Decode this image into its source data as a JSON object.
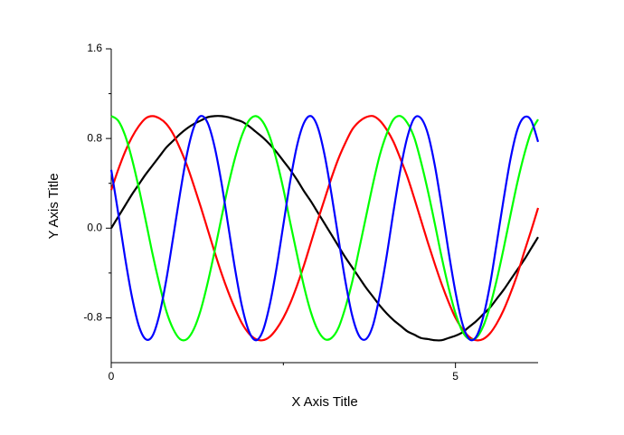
{
  "chart_data": {
    "type": "line",
    "x_label": "X Axis Title",
    "y_label": "Y Axis Title",
    "xlim": [
      0,
      6.2
    ],
    "ylim": [
      -1.2,
      1.6
    ],
    "xticks": [
      0,
      5
    ],
    "xminor_ticks": [
      2.5
    ],
    "yticks": [
      1.6,
      0.8,
      {
        "value": 0,
        "label": "0.0"
      },
      -0.8
    ],
    "yminor_ticks": [
      1.2,
      0.4,
      -0.4
    ],
    "x": [
      0,
      0.1,
      0.2,
      0.3,
      0.4,
      0.5,
      0.6,
      0.7,
      0.8,
      0.9,
      1.0,
      1.1,
      1.2,
      1.3,
      1.4,
      1.5,
      1.6,
      1.7,
      1.8,
      1.9,
      2.0,
      2.1,
      2.2,
      2.3,
      2.4,
      2.5,
      2.6,
      2.7,
      2.8,
      2.9,
      3.0,
      3.1,
      3.2,
      3.3,
      3.4,
      3.5,
      3.6,
      3.7,
      3.8,
      3.9,
      4.0,
      4.1,
      4.2,
      4.3,
      4.4,
      4.5,
      4.6,
      4.7,
      4.8,
      4.9,
      5.0,
      5.1,
      5.2,
      5.3,
      5.4,
      5.5,
      5.6,
      5.7,
      5.8,
      5.9,
      6.0,
      6.1,
      6.2
    ],
    "series": [
      {
        "color": "#000000",
        "values": [
          0,
          0.1,
          0.2,
          0.3,
          0.39,
          0.48,
          0.56,
          0.64,
          0.72,
          0.78,
          0.84,
          0.89,
          0.93,
          0.96,
          0.99,
          1.0,
          1.0,
          0.99,
          0.97,
          0.95,
          0.91,
          0.86,
          0.81,
          0.75,
          0.68,
          0.6,
          0.52,
          0.43,
          0.33,
          0.24,
          0.14,
          0.04,
          -0.06,
          -0.16,
          -0.26,
          -0.35,
          -0.44,
          -0.53,
          -0.61,
          -0.69,
          -0.76,
          -0.82,
          -0.87,
          -0.92,
          -0.95,
          -0.98,
          -0.99,
          -1.0,
          -1.0,
          -0.98,
          -0.96,
          -0.93,
          -0.88,
          -0.83,
          -0.77,
          -0.71,
          -0.63,
          -0.55,
          -0.46,
          -0.37,
          -0.28,
          -0.18,
          -0.08
        ]
      },
      {
        "color": "#ff0000",
        "values": [
          0.34,
          0.52,
          0.68,
          0.81,
          0.91,
          0.98,
          1.0,
          0.98,
          0.93,
          0.84,
          0.71,
          0.56,
          0.38,
          0.19,
          -0.01,
          -0.21,
          -0.4,
          -0.57,
          -0.72,
          -0.85,
          -0.94,
          -0.99,
          -1.0,
          -0.97,
          -0.9,
          -0.8,
          -0.67,
          -0.51,
          -0.33,
          -0.13,
          0.07,
          0.26,
          0.45,
          0.62,
          0.76,
          0.88,
          0.95,
          0.99,
          1.0,
          0.96,
          0.88,
          0.77,
          0.62,
          0.46,
          0.27,
          0.07,
          -0.13,
          -0.32,
          -0.5,
          -0.66,
          -0.8,
          -0.9,
          -0.97,
          -1.0,
          -0.99,
          -0.94,
          -0.85,
          -0.73,
          -0.58,
          -0.41,
          -0.21,
          -0.02,
          0.18
        ]
      },
      {
        "color": "#00ff00",
        "values": [
          1.0,
          0.96,
          0.83,
          0.62,
          0.36,
          0.07,
          -0.23,
          -0.5,
          -0.74,
          -0.9,
          -0.99,
          -0.99,
          -0.9,
          -0.73,
          -0.49,
          -0.21,
          0.09,
          0.38,
          0.63,
          0.83,
          0.96,
          1.0,
          0.95,
          0.82,
          0.61,
          0.35,
          0.05,
          -0.24,
          -0.52,
          -0.75,
          -0.91,
          -0.99,
          -0.98,
          -0.89,
          -0.71,
          -0.48,
          -0.19,
          0.1,
          0.39,
          0.65,
          0.84,
          0.97,
          1.0,
          0.94,
          0.81,
          0.59,
          0.33,
          0.04,
          -0.26,
          -0.53,
          -0.76,
          -0.92,
          -0.99,
          -0.98,
          -0.88,
          -0.7,
          -0.46,
          -0.18,
          0.12,
          0.41,
          0.66,
          0.86,
          0.97
        ]
      },
      {
        "color": "#0000ff",
        "values": [
          0.52,
          0.14,
          -0.26,
          -0.61,
          -0.87,
          -0.99,
          -0.96,
          -0.77,
          -0.46,
          -0.08,
          0.31,
          0.66,
          0.9,
          1.0,
          0.94,
          0.73,
          0.41,
          0.02,
          -0.37,
          -0.7,
          -0.92,
          -1.0,
          -0.92,
          -0.69,
          -0.36,
          0.03,
          0.42,
          0.74,
          0.94,
          1.0,
          0.9,
          0.65,
          0.3,
          -0.09,
          -0.47,
          -0.78,
          -0.96,
          -0.99,
          -0.87,
          -0.6,
          -0.25,
          0.15,
          0.52,
          0.81,
          0.98,
          0.98,
          0.84,
          0.56,
          0.19,
          -0.21,
          -0.57,
          -0.85,
          -0.99,
          -0.97,
          -0.8,
          -0.51,
          -0.13,
          0.26,
          0.62,
          0.88,
          0.99,
          0.96,
          0.77
        ]
      }
    ]
  }
}
